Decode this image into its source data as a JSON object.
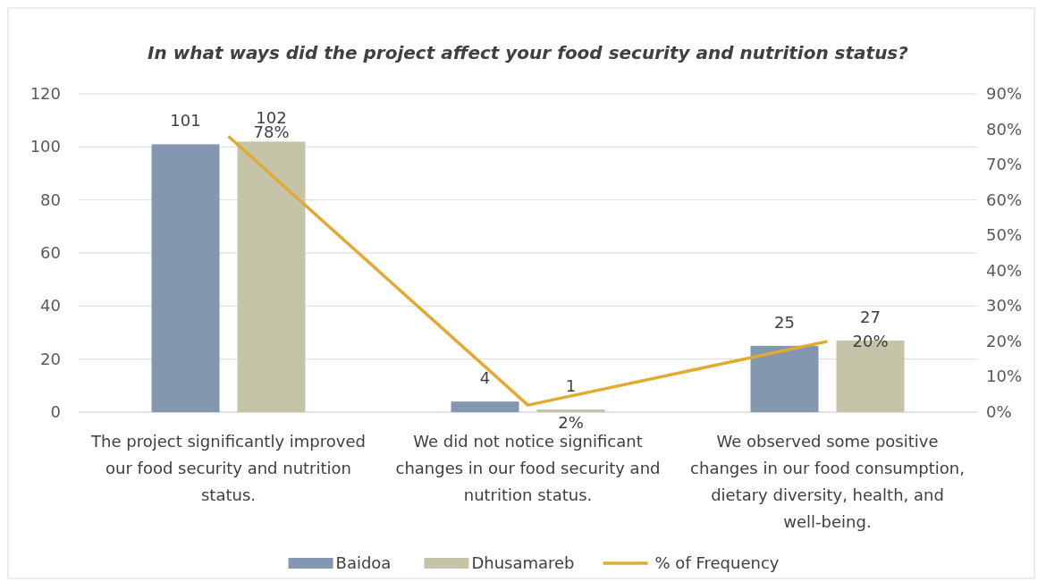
{
  "chart_data": {
    "type": "bar",
    "title": "In what ways did the project affect your food security and nutrition status?",
    "categories": [
      "The project significantly improved our food security and nutrition status.",
      "We did not notice significant changes in our food security and nutrition status.",
      "We observed some positive changes in our food consumption, dietary diversity, health, and well-being."
    ],
    "series": [
      {
        "name": "Baidoa",
        "color": "#8497b0",
        "values": [
          101,
          4,
          25
        ],
        "value_labels": [
          "101",
          "4",
          "25"
        ]
      },
      {
        "name": "Dhusamareb",
        "color": "#c5c3a8",
        "values": [
          102,
          1,
          27
        ],
        "value_labels": [
          "102",
          "1",
          "27"
        ]
      },
      {
        "name": "% of Frequency",
        "type": "line",
        "axis": "y2",
        "color": "#e0aa33",
        "values": [
          78,
          2,
          20
        ],
        "value_labels": [
          "78%",
          "2%",
          "20%"
        ]
      }
    ],
    "ylim": [
      0,
      120
    ],
    "yticks": [
      0,
      20,
      40,
      60,
      80,
      100,
      120
    ],
    "y2lim": [
      0,
      90
    ],
    "y2ticks": [
      {
        "value": 0,
        "label": "0%"
      },
      {
        "value": 10,
        "label": "10%"
      },
      {
        "value": 20,
        "label": "20%"
      },
      {
        "value": 30,
        "label": "30%"
      },
      {
        "value": 40,
        "label": "40%"
      },
      {
        "value": 50,
        "label": "50%"
      },
      {
        "value": 60,
        "label": "60%"
      },
      {
        "value": 70,
        "label": "70%"
      },
      {
        "value": 80,
        "label": "80%"
      },
      {
        "value": 90,
        "label": "90%"
      }
    ],
    "grid": "y",
    "legend": "bottom",
    "marker": "none",
    "line_style": "solid"
  }
}
